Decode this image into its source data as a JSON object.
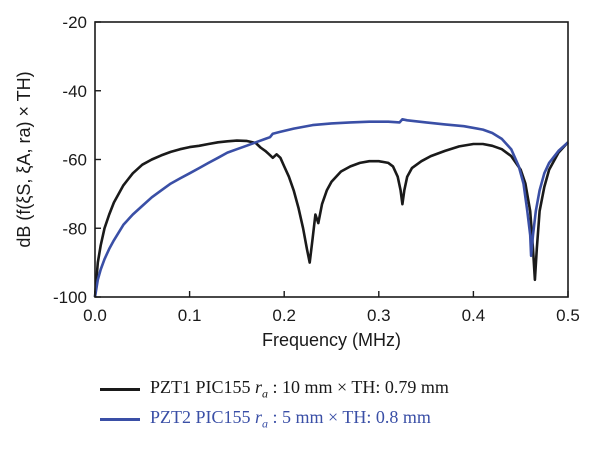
{
  "chart_data": {
    "type": "line",
    "xlabel": "Frequency (MHz)",
    "ylabel": "dB (f(ξS, ξA, ra) × TH)",
    "xlim": [
      0.0,
      0.5
    ],
    "ylim": [
      -100,
      -20
    ],
    "x_ticks": [
      "0.0",
      "0.1",
      "0.2",
      "0.3",
      "0.4",
      "0.5"
    ],
    "y_ticks": [
      "-20",
      "-40",
      "-60",
      "-80",
      "-100"
    ],
    "grid": false,
    "legend_position": "bottom",
    "series": [
      {
        "name": "PZT1 PIC155 ra : 10 mm × TH: 0.79 mm",
        "legend_prefix": "PZT1 PIC155 ",
        "legend_var": "r",
        "legend_sub": "a",
        "legend_suffix": " : 10 mm × TH: 0.79 mm",
        "color": "#1a1a1a",
        "points": [
          [
            0.0,
            -100
          ],
          [
            0.003,
            -90
          ],
          [
            0.006,
            -85
          ],
          [
            0.01,
            -80
          ],
          [
            0.015,
            -76
          ],
          [
            0.02,
            -72.5
          ],
          [
            0.03,
            -67.5
          ],
          [
            0.04,
            -64
          ],
          [
            0.05,
            -61.5
          ],
          [
            0.06,
            -60
          ],
          [
            0.07,
            -58.8
          ],
          [
            0.08,
            -57.8
          ],
          [
            0.09,
            -57
          ],
          [
            0.1,
            -56.4
          ],
          [
            0.11,
            -56
          ],
          [
            0.12,
            -55.5
          ],
          [
            0.13,
            -55
          ],
          [
            0.14,
            -54.7
          ],
          [
            0.15,
            -54.5
          ],
          [
            0.16,
            -54.6
          ],
          [
            0.17,
            -55.2
          ],
          [
            0.175,
            -56.5
          ],
          [
            0.18,
            -57.5
          ],
          [
            0.184,
            -58.5
          ],
          [
            0.188,
            -59.5
          ],
          [
            0.192,
            -58.5
          ],
          [
            0.196,
            -59.5
          ],
          [
            0.2,
            -62
          ],
          [
            0.205,
            -65
          ],
          [
            0.21,
            -69
          ],
          [
            0.215,
            -74
          ],
          [
            0.22,
            -80
          ],
          [
            0.224,
            -86
          ],
          [
            0.227,
            -90
          ],
          [
            0.23,
            -83
          ],
          [
            0.233,
            -76
          ],
          [
            0.236,
            -78.5
          ],
          [
            0.24,
            -73
          ],
          [
            0.245,
            -69
          ],
          [
            0.25,
            -66.5
          ],
          [
            0.26,
            -63.5
          ],
          [
            0.27,
            -62
          ],
          [
            0.28,
            -61
          ],
          [
            0.29,
            -60.5
          ],
          [
            0.3,
            -60.5
          ],
          [
            0.31,
            -61
          ],
          [
            0.315,
            -62
          ],
          [
            0.32,
            -65
          ],
          [
            0.323,
            -69
          ],
          [
            0.325,
            -73
          ],
          [
            0.327,
            -69
          ],
          [
            0.33,
            -65
          ],
          [
            0.335,
            -62.5
          ],
          [
            0.345,
            -60.5
          ],
          [
            0.355,
            -59
          ],
          [
            0.37,
            -57.5
          ],
          [
            0.385,
            -56.2
          ],
          [
            0.4,
            -55.5
          ],
          [
            0.41,
            -55.5
          ],
          [
            0.42,
            -56
          ],
          [
            0.43,
            -57
          ],
          [
            0.44,
            -59
          ],
          [
            0.45,
            -63
          ],
          [
            0.455,
            -67
          ],
          [
            0.46,
            -75
          ],
          [
            0.463,
            -86
          ],
          [
            0.465,
            -95
          ],
          [
            0.467,
            -86
          ],
          [
            0.47,
            -75
          ],
          [
            0.475,
            -68
          ],
          [
            0.48,
            -63
          ],
          [
            0.49,
            -58
          ],
          [
            0.5,
            -55
          ]
        ]
      },
      {
        "name": "PZT2 PIC155 ra : 5 mm × TH: 0.8 mm",
        "legend_prefix": "PZT2 PIC155 ",
        "legend_var": "r",
        "legend_sub": "a",
        "legend_suffix": " : 5 mm × TH: 0.8 mm",
        "color": "#3a4fa6",
        "points": [
          [
            0.0,
            -100
          ],
          [
            0.003,
            -95
          ],
          [
            0.006,
            -92
          ],
          [
            0.01,
            -89
          ],
          [
            0.015,
            -86
          ],
          [
            0.02,
            -83.5
          ],
          [
            0.03,
            -79
          ],
          [
            0.04,
            -76
          ],
          [
            0.05,
            -73.5
          ],
          [
            0.06,
            -71
          ],
          [
            0.07,
            -69
          ],
          [
            0.08,
            -67
          ],
          [
            0.09,
            -65.5
          ],
          [
            0.1,
            -64
          ],
          [
            0.11,
            -62.5
          ],
          [
            0.12,
            -61
          ],
          [
            0.13,
            -59.5
          ],
          [
            0.14,
            -58
          ],
          [
            0.15,
            -57
          ],
          [
            0.16,
            -56
          ],
          [
            0.17,
            -55
          ],
          [
            0.18,
            -54
          ],
          [
            0.185,
            -53.5
          ],
          [
            0.188,
            -52.5
          ],
          [
            0.195,
            -52
          ],
          [
            0.21,
            -51
          ],
          [
            0.23,
            -50
          ],
          [
            0.25,
            -49.5
          ],
          [
            0.27,
            -49.2
          ],
          [
            0.29,
            -49
          ],
          [
            0.31,
            -49
          ],
          [
            0.322,
            -49.2
          ],
          [
            0.325,
            -48.3
          ],
          [
            0.33,
            -48.6
          ],
          [
            0.35,
            -49.2
          ],
          [
            0.37,
            -49.8
          ],
          [
            0.39,
            -50.3
          ],
          [
            0.41,
            -51.3
          ],
          [
            0.42,
            -52.3
          ],
          [
            0.43,
            -54
          ],
          [
            0.44,
            -57
          ],
          [
            0.448,
            -62
          ],
          [
            0.453,
            -67
          ],
          [
            0.457,
            -75
          ],
          [
            0.46,
            -82
          ],
          [
            0.461,
            -88
          ],
          [
            0.463,
            -82
          ],
          [
            0.466,
            -75
          ],
          [
            0.47,
            -69
          ],
          [
            0.475,
            -64
          ],
          [
            0.48,
            -61
          ],
          [
            0.49,
            -57.5
          ],
          [
            0.5,
            -55
          ]
        ]
      }
    ]
  }
}
